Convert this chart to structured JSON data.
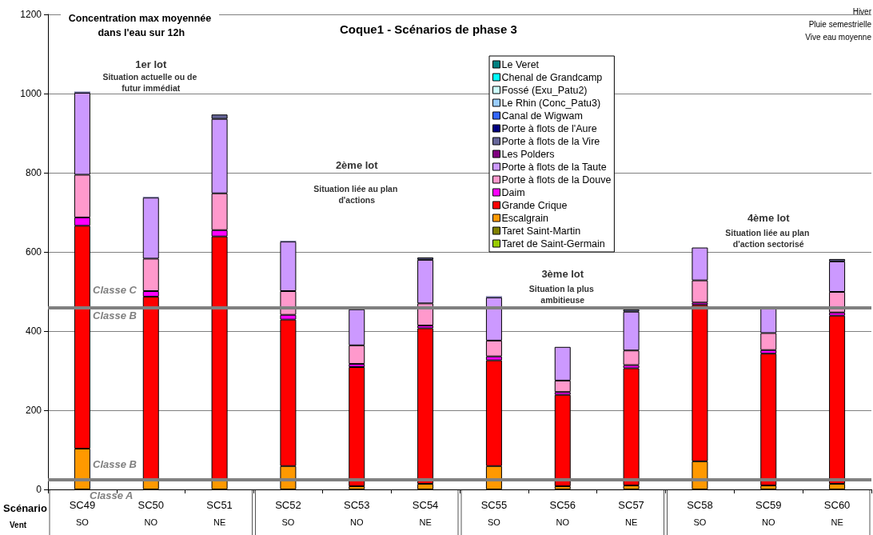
{
  "chart_data": {
    "type": "bar",
    "stacked": true,
    "title": "Coque1 - Scénarios de phase 3",
    "ylabel": "Concentration max moyennée dans l'eau sur 12h",
    "categories": [
      "SC49\nSO",
      "SC50\nNO",
      "SC51\nNE",
      "SC52\nSO",
      "SC53\nNO",
      "SC54\nNE",
      "SC55\nSO",
      "SC56\nNO",
      "SC57\nNE",
      "SC58\nSO",
      "SC59\nNO",
      "SC60\nNE"
    ],
    "series": [
      {
        "name": "Taret de Saint-Germain",
        "color": "#99cc00",
        "values": [
          null,
          null,
          null,
          null,
          null,
          null,
          null,
          null,
          null,
          null,
          null,
          null
        ]
      },
      {
        "name": "Taret Saint-Martin",
        "color": "#808000",
        "values": [
          null,
          null,
          null,
          null,
          null,
          null,
          null,
          null,
          null,
          null,
          null,
          null
        ]
      },
      {
        "name": "Escalgrain",
        "color": "#ff9900",
        "values": [
          103,
          25,
          26,
          59,
          8,
          14,
          59,
          8,
          10,
          71,
          10,
          14
        ]
      },
      {
        "name": "Grande Crique",
        "color": "#ff0000",
        "values": [
          563,
          462,
          613,
          370,
          301,
          393,
          267,
          231,
          296,
          395,
          333,
          425
        ]
      },
      {
        "name": "Daim",
        "color": "#ff00ff",
        "values": [
          21,
          14,
          16,
          12,
          8,
          7,
          10,
          7,
          8,
          6,
          9,
          8
        ]
      },
      {
        "name": "Porte à flots de la Douve",
        "color": "#ff99cc",
        "values": [
          108,
          82,
          93,
          60,
          47,
          56,
          40,
          29,
          37,
          56,
          43,
          52
        ]
      },
      {
        "name": "Porte à flots de la Taute",
        "color": "#cc99ff",
        "values": [
          207,
          154,
          188,
          125,
          91,
          110,
          109,
          85,
          98,
          83,
          65,
          77
        ]
      },
      {
        "name": "Les Polders",
        "color": "#800080",
        "values": [
          null,
          null,
          null,
          null,
          null,
          null,
          null,
          null,
          null,
          null,
          null,
          null
        ]
      },
      {
        "name": "Porte à flots de la Vire",
        "color": "#666699",
        "values": [
          3,
          2,
          11,
          2,
          null,
          6,
          3,
          null,
          6,
          null,
          null,
          6
        ]
      },
      {
        "name": "Porte à flots de l'Aure",
        "color": "#000080",
        "values": [
          null,
          null,
          null,
          null,
          null,
          null,
          null,
          null,
          null,
          null,
          null,
          null
        ]
      },
      {
        "name": "Canal de Wigwam",
        "color": "#3366ff",
        "values": [
          null,
          null,
          null,
          null,
          null,
          null,
          null,
          null,
          null,
          null,
          null,
          null
        ]
      },
      {
        "name": "Le Rhin (Conc_Patu3)",
        "color": "#99ccff",
        "values": [
          null,
          null,
          null,
          null,
          null,
          null,
          null,
          null,
          null,
          null,
          null,
          null
        ]
      },
      {
        "name": "Fossé (Exu_Patu2)",
        "color": "#ccffff",
        "values": [
          null,
          null,
          null,
          null,
          null,
          null,
          null,
          null,
          null,
          null,
          null,
          null
        ]
      },
      {
        "name": "Chenal de Grandcamp",
        "color": "#00ffff",
        "values": [
          null,
          null,
          null,
          null,
          null,
          null,
          null,
          null,
          null,
          null,
          null,
          null
        ]
      },
      {
        "name": "Le Veret",
        "color": "#008080",
        "values": [
          null,
          null,
          null,
          null,
          null,
          null,
          null,
          null,
          null,
          null,
          null,
          null
        ]
      }
    ],
    "ylim": [
      0,
      1200
    ],
    "yticks": [
      0,
      200,
      400,
      600,
      800,
      1000,
      1200
    ],
    "grid": "y",
    "legend": "top",
    "ref_lines": [
      {
        "axis": "y",
        "value": 460,
        "color": "#808080"
      },
      {
        "axis": "y",
        "value": 25,
        "color": "#808080"
      }
    ],
    "annotations": [
      "Hiver",
      "Pluie semestrielle",
      "Vive eau moyenne",
      "1er lot",
      "Situation actuelle ou de futur immédiat",
      "2ème lot",
      "Situation liée au plan d'actions",
      "3ème lot",
      "Situation la plus ambitieuse",
      "4ème lot",
      "Situation liée au plan d'action sectorisé",
      "Classe C",
      "Classe B",
      "Classe B",
      "Classe A",
      "Scénario",
      "Vent"
    ]
  }
}
